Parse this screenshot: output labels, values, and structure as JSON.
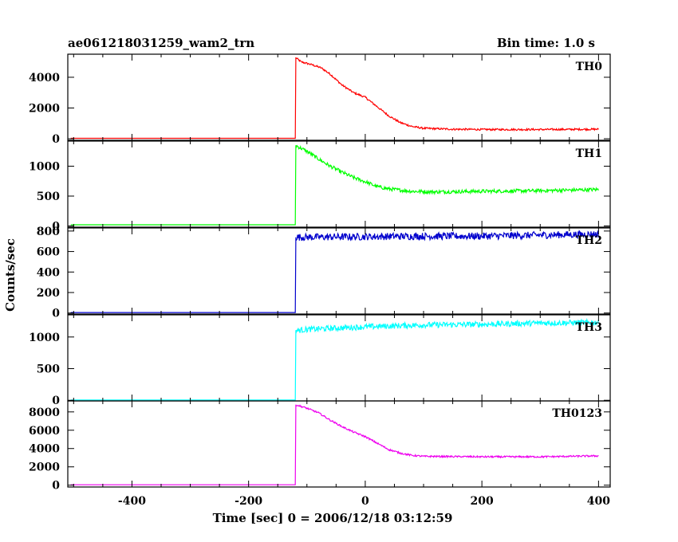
{
  "chart_data": {
    "type": "line",
    "title_left": "ae061218031259_wam2_trn",
    "title_right": "Bin time: 1.0 s",
    "xlabel": "Time [sec] 0 = 2006/12/18 03:12:59",
    "ylabel": "Counts/sec",
    "xlim": [
      -510,
      420
    ],
    "x_ticks": [
      -400,
      -200,
      0,
      200,
      400
    ],
    "burst_start": -120,
    "grid": false,
    "panels": [
      {
        "name": "TH0",
        "color": "#ff0000",
        "ylim": [
          -100,
          5500
        ],
        "y_ticks": [
          0,
          2000,
          4000
        ],
        "pre_level": 30,
        "noise": 60,
        "points": [
          [
            -120,
            5300
          ],
          [
            -110,
            5000
          ],
          [
            -90,
            4800
          ],
          [
            -75,
            4600
          ],
          [
            -60,
            4200
          ],
          [
            -40,
            3500
          ],
          [
            -20,
            3000
          ],
          [
            0,
            2700
          ],
          [
            20,
            2100
          ],
          [
            40,
            1500
          ],
          [
            60,
            1050
          ],
          [
            80,
            800
          ],
          [
            100,
            680
          ],
          [
            150,
            620
          ],
          [
            200,
            600
          ],
          [
            300,
            600
          ],
          [
            400,
            620
          ]
        ]
      },
      {
        "name": "TH1",
        "color": "#00ff00",
        "ylim": [
          -20,
          1420
        ],
        "y_ticks": [
          0,
          500,
          1000
        ],
        "pre_level": 20,
        "noise": 30,
        "points": [
          [
            -120,
            1350
          ],
          [
            -100,
            1250
          ],
          [
            -80,
            1120
          ],
          [
            -60,
            1000
          ],
          [
            -40,
            900
          ],
          [
            -20,
            810
          ],
          [
            0,
            740
          ],
          [
            20,
            660
          ],
          [
            40,
            620
          ],
          [
            60,
            600
          ],
          [
            80,
            580
          ],
          [
            120,
            570
          ],
          [
            200,
            580
          ],
          [
            300,
            590
          ],
          [
            400,
            610
          ]
        ]
      },
      {
        "name": "TH2",
        "color": "#0000cd",
        "ylim": [
          -10,
          830
        ],
        "y_ticks": [
          0,
          200,
          400,
          600,
          800
        ],
        "pre_level": 5,
        "noise": 35,
        "points": [
          [
            -120,
            740
          ],
          [
            -100,
            740
          ],
          [
            0,
            745
          ],
          [
            100,
            750
          ],
          [
            200,
            750
          ],
          [
            300,
            760
          ],
          [
            400,
            770
          ]
        ]
      },
      {
        "name": "TH3",
        "color": "#00ffff",
        "ylim": [
          -10,
          1350
        ],
        "y_ticks": [
          0,
          500,
          1000
        ],
        "pre_level": 5,
        "noise": 45,
        "points": [
          [
            -120,
            1100
          ],
          [
            -100,
            1120
          ],
          [
            0,
            1160
          ],
          [
            100,
            1190
          ],
          [
            200,
            1200
          ],
          [
            300,
            1220
          ],
          [
            400,
            1230
          ]
        ]
      },
      {
        "name": "TH0123",
        "color": "#ee00ee",
        "ylim": [
          -200,
          9200
        ],
        "y_ticks": [
          0,
          2000,
          4000,
          6000,
          8000
        ],
        "pre_level": 40,
        "noise": 90,
        "points": [
          [
            -120,
            8800
          ],
          [
            -100,
            8400
          ],
          [
            -80,
            7900
          ],
          [
            -60,
            7100
          ],
          [
            -40,
            6400
          ],
          [
            -20,
            5800
          ],
          [
            0,
            5300
          ],
          [
            20,
            4600
          ],
          [
            40,
            3900
          ],
          [
            60,
            3500
          ],
          [
            80,
            3250
          ],
          [
            100,
            3150
          ],
          [
            200,
            3100
          ],
          [
            300,
            3100
          ],
          [
            400,
            3200
          ]
        ]
      }
    ]
  }
}
